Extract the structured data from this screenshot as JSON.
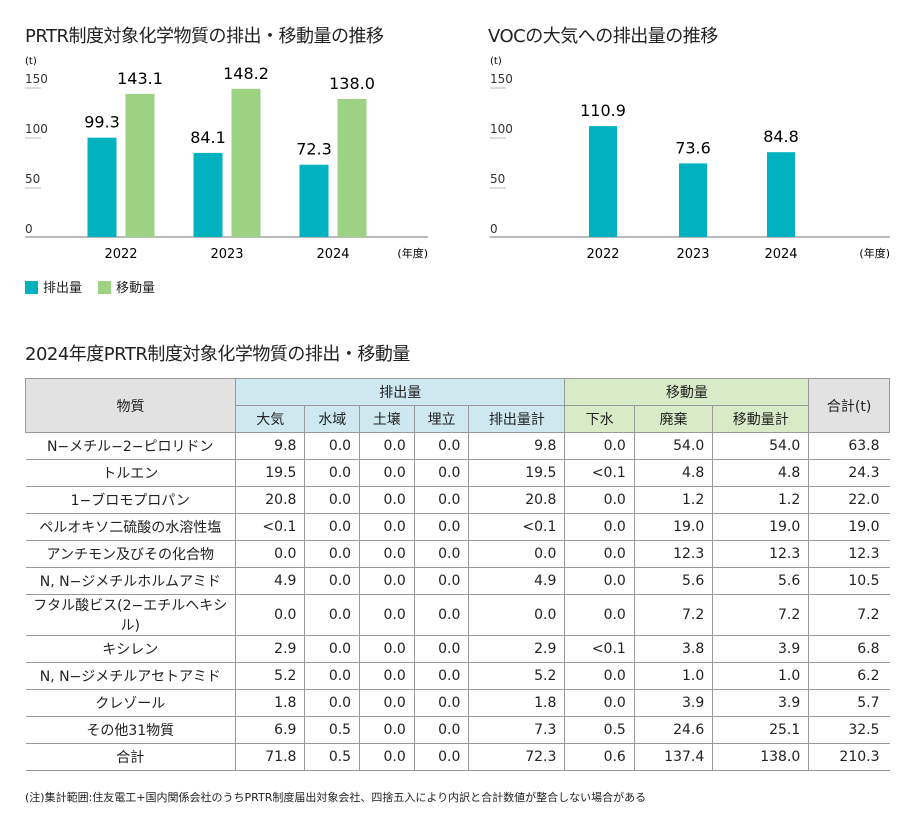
{
  "chart_data": [
    {
      "type": "bar",
      "title": "PRTR制度対象化学物質の排出・移動量の推移",
      "ylabel": "(t)",
      "xlabel": "(年度)",
      "ylim": [
        0,
        150
      ],
      "yticks": [
        0,
        50,
        100,
        150
      ],
      "categories": [
        "2022",
        "2023",
        "2024"
      ],
      "series": [
        {
          "name": "排出量",
          "color": "#00b2c0",
          "values": [
            99.3,
            84.1,
            72.3
          ]
        },
        {
          "name": "移動量",
          "color": "#9dd283",
          "values": [
            143.1,
            148.2,
            138.0
          ]
        }
      ],
      "legend": "bottom-left"
    },
    {
      "type": "bar",
      "title": "VOCの大気への排出量の推移",
      "ylabel": "(t)",
      "xlabel": "(年度)",
      "ylim": [
        0,
        150
      ],
      "yticks": [
        0,
        50,
        100,
        150
      ],
      "categories": [
        "2022",
        "2023",
        "2024"
      ],
      "series": [
        {
          "color": "#00b2c0",
          "values": [
            110.9,
            73.6,
            84.8
          ]
        }
      ]
    }
  ],
  "table": {
    "title": "2024年度PRTR制度対象化学物質の排出・移動量",
    "header": {
      "substance": "物質",
      "emission": "排出量",
      "transfer": "移動量",
      "total": "合計(t)",
      "emission_cols": [
        "大気",
        "水域",
        "土壌",
        "埋立",
        "排出量計"
      ],
      "transfer_cols": [
        "下水",
        "廃棄",
        "移動量計"
      ]
    },
    "rows": [
      [
        "N−メチル−2−ピロリドン",
        "9.8",
        "0.0",
        "0.0",
        "0.0",
        "9.8",
        "0.0",
        "54.0",
        "54.0",
        "63.8"
      ],
      [
        "トルエン",
        "19.5",
        "0.0",
        "0.0",
        "0.0",
        "19.5",
        "<0.1",
        "4.8",
        "4.8",
        "24.3"
      ],
      [
        "1−ブロモプロパン",
        "20.8",
        "0.0",
        "0.0",
        "0.0",
        "20.8",
        "0.0",
        "1.2",
        "1.2",
        "22.0"
      ],
      [
        "ペルオキソ二硫酸の水溶性塩",
        "<0.1",
        "0.0",
        "0.0",
        "0.0",
        "<0.1",
        "0.0",
        "19.0",
        "19.0",
        "19.0"
      ],
      [
        "アンチモン及びその化合物",
        "0.0",
        "0.0",
        "0.0",
        "0.0",
        "0.0",
        "0.0",
        "12.3",
        "12.3",
        "12.3"
      ],
      [
        "N, N−ジメチルホルムアミド",
        "4.9",
        "0.0",
        "0.0",
        "0.0",
        "4.9",
        "0.0",
        "5.6",
        "5.6",
        "10.5"
      ],
      [
        "フタル酸ビス(2−エチルヘキシル)",
        "0.0",
        "0.0",
        "0.0",
        "0.0",
        "0.0",
        "0.0",
        "7.2",
        "7.2",
        "7.2"
      ],
      [
        "キシレン",
        "2.9",
        "0.0",
        "0.0",
        "0.0",
        "2.9",
        "<0.1",
        "3.8",
        "3.9",
        "6.8"
      ],
      [
        "N, N−ジメチルアセトアミド",
        "5.2",
        "0.0",
        "0.0",
        "0.0",
        "5.2",
        "0.0",
        "1.0",
        "1.0",
        "6.2"
      ],
      [
        "クレゾール",
        "1.8",
        "0.0",
        "0.0",
        "0.0",
        "1.8",
        "0.0",
        "3.9",
        "3.9",
        "5.7"
      ],
      [
        "その他31物質",
        "6.9",
        "0.5",
        "0.0",
        "0.0",
        "7.3",
        "0.5",
        "24.6",
        "25.1",
        "32.5"
      ],
      [
        "合計",
        "71.8",
        "0.5",
        "0.0",
        "0.0",
        "72.3",
        "0.6",
        "137.4",
        "138.0",
        "210.3"
      ]
    ]
  },
  "note": "(注)集計範囲:住友電工+国内関係会社のうちPRTR制度届出対象会社、四捨五入により内訳と合計数値が整合しない場合がある"
}
